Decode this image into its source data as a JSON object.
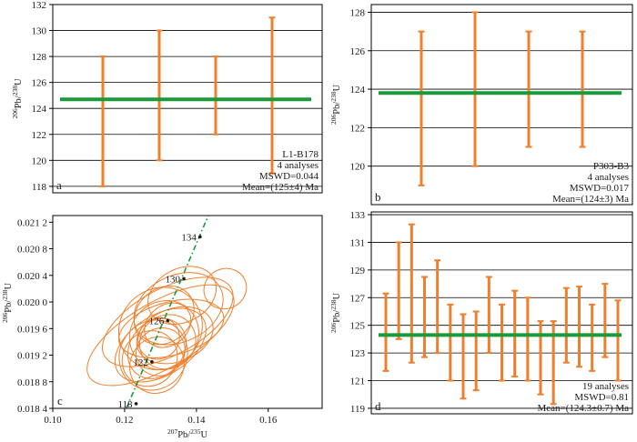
{
  "colors": {
    "error_bar": "#ef7f2c",
    "mean_line": "#1a9a3a",
    "ellipse": "#ef7f2c",
    "concordia": "#1a9a3a",
    "grid": "#000000"
  },
  "chart_data": [
    {
      "id": "a",
      "type": "error_bar",
      "panel_label": "a",
      "ylabel": "206Pb/238U",
      "ylabel_parts": [
        "206",
        "Pb/",
        "238",
        "U"
      ],
      "ylim": [
        117.5,
        132
      ],
      "yticks": [
        118,
        120,
        122,
        124,
        126,
        128,
        130,
        132
      ],
      "ytick_labels": [
        "118",
        "120",
        "122",
        "124",
        "126",
        "128",
        "130",
        "132"
      ],
      "grid": true,
      "mean": 124.7,
      "analyses": [
        {
          "low": 118,
          "high": 128
        },
        {
          "low": 120,
          "high": 130
        },
        {
          "low": 122,
          "high": 128
        },
        {
          "low": 119,
          "high": 131
        }
      ],
      "annotation": [
        "L1-B178",
        "4 analyses",
        "MSWD=0.044",
        "Mean=(125±4) Ma"
      ]
    },
    {
      "id": "b",
      "type": "error_bar",
      "panel_label": "b",
      "ylabel": "206Pb/238U",
      "ylabel_parts": [
        "206",
        "Pb/",
        "238",
        "U"
      ],
      "ylim": [
        118,
        128.4
      ],
      "yticks": [
        120,
        122,
        124,
        126,
        128
      ],
      "ytick_labels": [
        "120",
        "122",
        "124",
        "126",
        "128"
      ],
      "grid": true,
      "mean": 123.8,
      "analyses": [
        {
          "low": 119,
          "high": 127
        },
        {
          "low": 120,
          "high": 128
        },
        {
          "low": 121,
          "high": 127
        },
        {
          "low": 121,
          "high": 127
        }
      ],
      "annotation": [
        "P303-B3",
        "4 analyses",
        "MSWD=0.017",
        "Mean=(124±3) Ma"
      ]
    },
    {
      "id": "c",
      "type": "concordia",
      "panel_label": "c",
      "xlabel_parts": [
        "207",
        "Pb/",
        "235",
        "U"
      ],
      "ylabel_parts": [
        "206",
        "Pb/",
        "238",
        "U"
      ],
      "xlim": [
        0.1,
        0.175
      ],
      "ylim": [
        0.0184,
        0.0213
      ],
      "xticks": [
        0.1,
        0.12,
        0.14,
        0.16
      ],
      "xtick_labels": [
        "0.10",
        "0.12",
        "0.14",
        "0.16"
      ],
      "yticks": [
        0.0184,
        0.0188,
        0.0192,
        0.0196,
        0.02,
        0.0204,
        0.0208,
        0.0212
      ],
      "ytick_labels": [
        "0.018 4",
        "0.018 8",
        "0.019 2",
        "0.019 6",
        "0.020 0",
        "0.020 4",
        "0.020 8",
        "0.021 2"
      ],
      "concordia_ages": [
        {
          "label": "118",
          "x": 0.1232,
          "y": 0.01847
        },
        {
          "label": "122",
          "x": 0.1276,
          "y": 0.0191
        },
        {
          "label": "126",
          "x": 0.132,
          "y": 0.01972
        },
        {
          "label": "130",
          "x": 0.1365,
          "y": 0.02035
        },
        {
          "label": "134",
          "x": 0.141,
          "y": 0.02098
        }
      ],
      "concordia_line": [
        [
          0.1205,
          0.0184
        ],
        [
          0.1433,
          0.0213
        ]
      ],
      "ellipses": [
        {
          "cx": 0.13,
          "cy": 0.0195,
          "rx": 0.023,
          "ry": 0.0005,
          "angle": 30
        },
        {
          "cx": 0.132,
          "cy": 0.0197,
          "rx": 0.02,
          "ry": 0.0005,
          "angle": 28
        },
        {
          "cx": 0.13,
          "cy": 0.0196,
          "rx": 0.012,
          "ry": 0.0006,
          "angle": 40
        },
        {
          "cx": 0.131,
          "cy": 0.0195,
          "rx": 0.01,
          "ry": 0.0005,
          "angle": 45
        },
        {
          "cx": 0.129,
          "cy": 0.0193,
          "rx": 0.009,
          "ry": 0.0004,
          "angle": 50
        },
        {
          "cx": 0.132,
          "cy": 0.0194,
          "rx": 0.008,
          "ry": 0.0004,
          "angle": 35
        },
        {
          "cx": 0.13,
          "cy": 0.01925,
          "rx": 0.007,
          "ry": 0.00035,
          "angle": 38
        },
        {
          "cx": 0.134,
          "cy": 0.0195,
          "rx": 0.011,
          "ry": 0.0004,
          "angle": 20
        },
        {
          "cx": 0.128,
          "cy": 0.0192,
          "rx": 0.01,
          "ry": 0.0005,
          "angle": 55
        },
        {
          "cx": 0.131,
          "cy": 0.0198,
          "rx": 0.009,
          "ry": 0.0004,
          "angle": 42
        },
        {
          "cx": 0.135,
          "cy": 0.0199,
          "rx": 0.013,
          "ry": 0.0005,
          "angle": 25
        },
        {
          "cx": 0.129,
          "cy": 0.01905,
          "rx": 0.008,
          "ry": 0.0004,
          "angle": 60
        },
        {
          "cx": 0.133,
          "cy": 0.0196,
          "rx": 0.015,
          "ry": 0.0004,
          "angle": 15
        },
        {
          "cx": 0.13,
          "cy": 0.01935,
          "rx": 0.014,
          "ry": 0.00045,
          "angle": 32
        },
        {
          "cx": 0.127,
          "cy": 0.01915,
          "rx": 0.008,
          "ry": 0.0004,
          "angle": 48
        },
        {
          "cx": 0.132,
          "cy": 0.01965,
          "rx": 0.007,
          "ry": 0.0003,
          "angle": 40
        },
        {
          "cx": 0.136,
          "cy": 0.0201,
          "rx": 0.01,
          "ry": 0.0004,
          "angle": 28
        },
        {
          "cx": 0.1295,
          "cy": 0.01945,
          "rx": 0.006,
          "ry": 0.0003,
          "angle": 44
        },
        {
          "cx": 0.148,
          "cy": 0.0202,
          "rx": 0.006,
          "ry": 0.0003,
          "angle": 25
        }
      ]
    },
    {
      "id": "d",
      "type": "error_bar",
      "panel_label": "d",
      "ylabel": "206Pb/238U",
      "ylabel_parts": [
        "206",
        "Pb/",
        "238",
        "U"
      ],
      "ylim": [
        118.6,
        133.2
      ],
      "yticks": [
        119,
        121,
        123,
        125,
        127,
        129,
        131,
        133
      ],
      "ytick_labels": [
        "119",
        "121",
        "123",
        "125",
        "127",
        "129",
        "131",
        "133"
      ],
      "grid": true,
      "mean": 124.3,
      "analyses": [
        {
          "low": 121.7,
          "high": 127.3
        },
        {
          "low": 124.0,
          "high": 131.0
        },
        {
          "low": 122.3,
          "high": 132.3
        },
        {
          "low": 122.7,
          "high": 128.5
        },
        {
          "low": 123.0,
          "high": 129.7
        },
        {
          "low": 121.0,
          "high": 126.5
        },
        {
          "low": 119.7,
          "high": 125.8
        },
        {
          "low": 120.3,
          "high": 126.0
        },
        {
          "low": 123.0,
          "high": 128.5
        },
        {
          "low": 121.0,
          "high": 126.5
        },
        {
          "low": 121.3,
          "high": 127.5
        },
        {
          "low": 121.0,
          "high": 127.0
        },
        {
          "low": 120.0,
          "high": 125.3
        },
        {
          "low": 119.3,
          "high": 125.3
        },
        {
          "low": 122.3,
          "high": 127.7
        },
        {
          "low": 122.0,
          "high": 127.8
        },
        {
          "low": 121.7,
          "high": 126.5
        },
        {
          "low": 122.7,
          "high": 128.0
        },
        {
          "low": 121.0,
          "high": 126.8
        }
      ],
      "annotation": [
        "19 analyses",
        "MSWD=0.81",
        "Mean=(124.3±0.7) Ma"
      ]
    }
  ]
}
